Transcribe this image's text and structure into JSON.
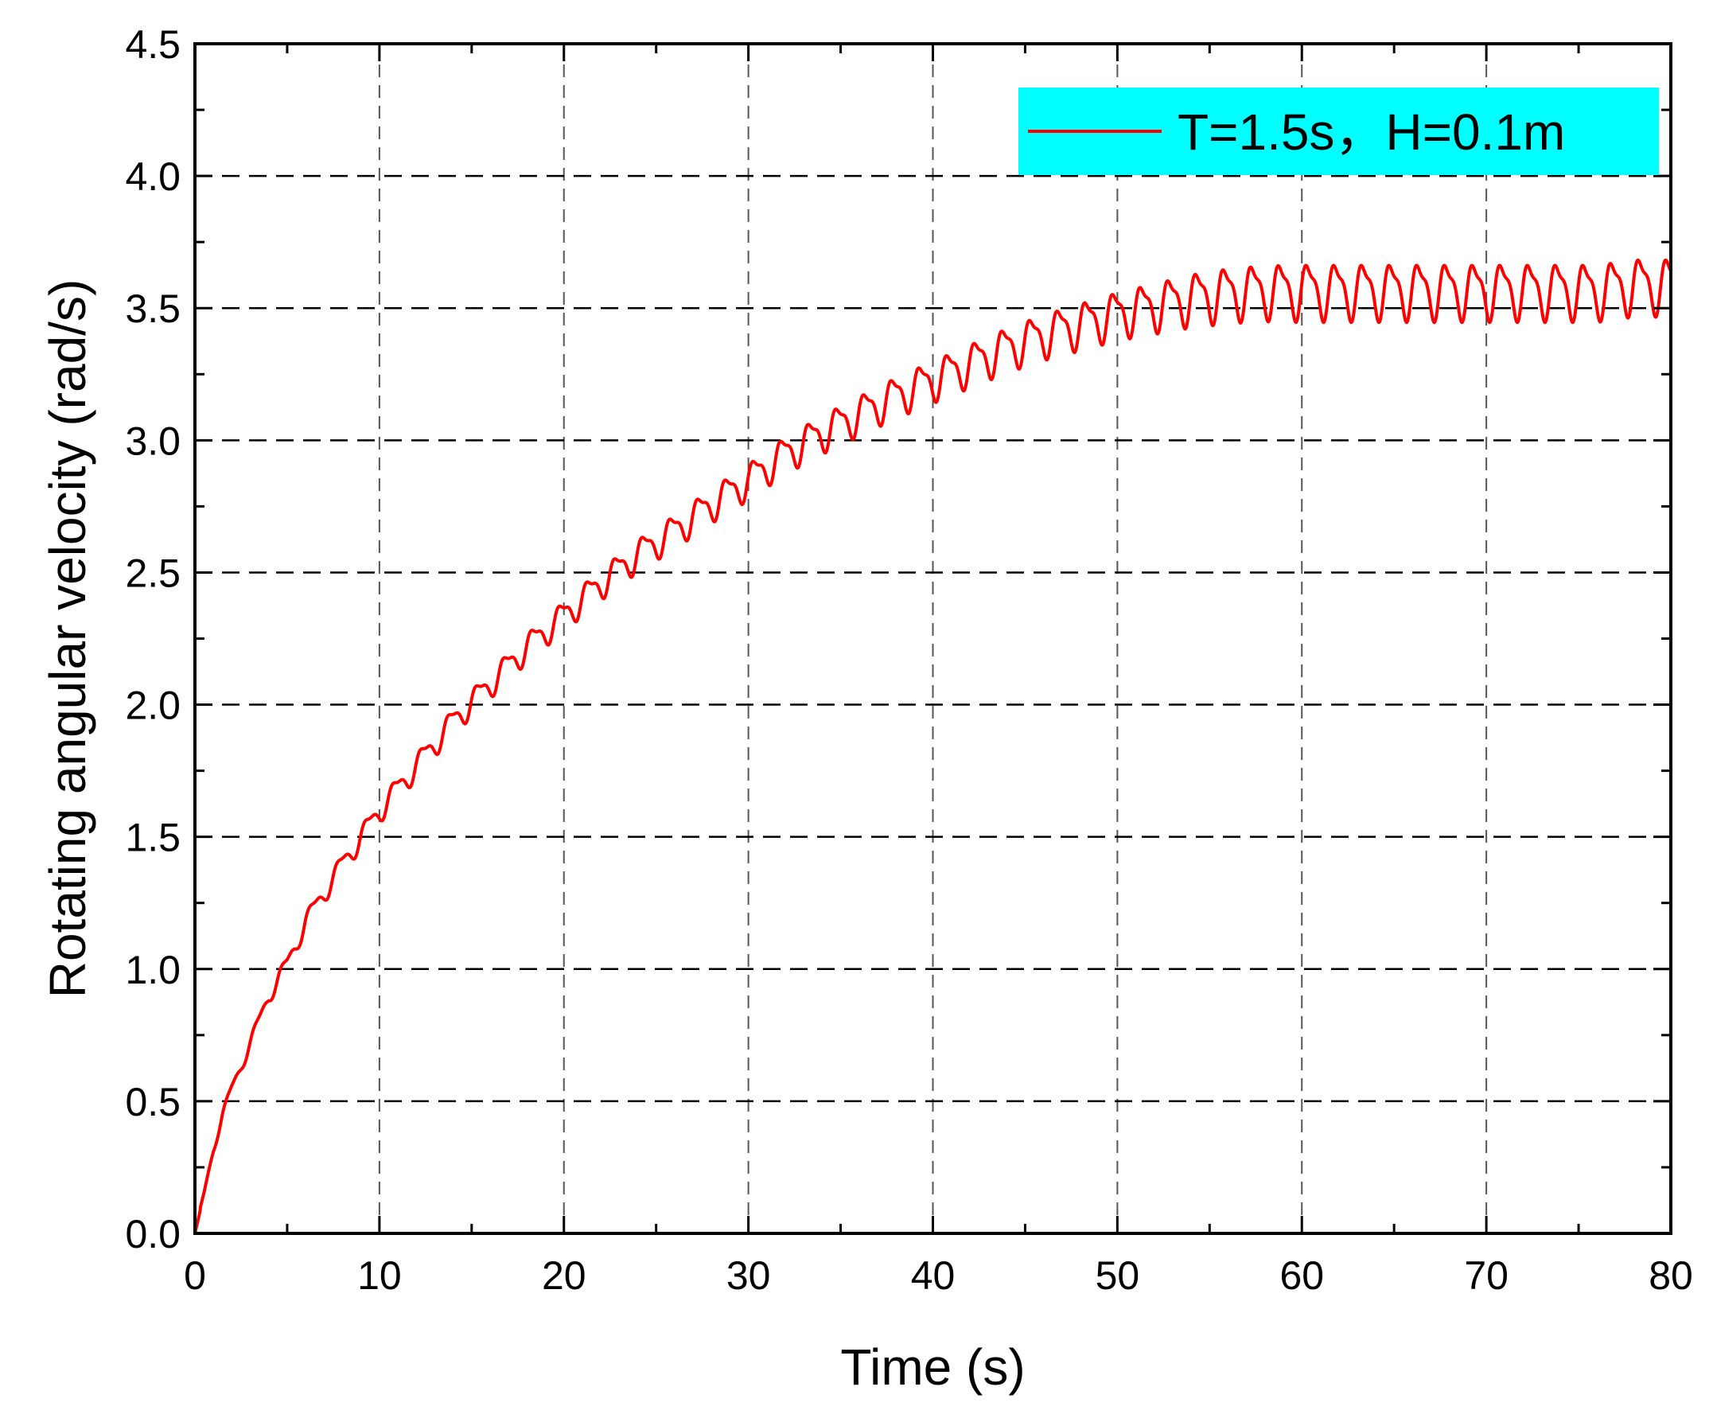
{
  "chart_data": {
    "type": "line",
    "title": "",
    "xlabel": "Time (s)",
    "ylabel": "Rotating angular velocity (rad/s)",
    "xlim": [
      0,
      80
    ],
    "ylim": [
      0,
      4.5
    ],
    "x_ticks": [
      "0",
      "10",
      "20",
      "30",
      "40",
      "50",
      "60",
      "70",
      "80"
    ],
    "y_ticks": [
      "0.0",
      "0.5",
      "1.0",
      "1.5",
      "2.0",
      "2.5",
      "3.0",
      "3.5",
      "4.0",
      "4.5"
    ],
    "grid": true,
    "legend_position": "top-right",
    "legend_background": "#00ffff",
    "series": [
      {
        "name": "T=1.5s，H=0.1m",
        "color": "#ff0000",
        "wave_period": 1.5,
        "trend": {
          "x": [
            0,
            0.5,
            1,
            1.5,
            2,
            3,
            4,
            5,
            6,
            8,
            10,
            12,
            14,
            16,
            18,
            20,
            22,
            24,
            26,
            28,
            30,
            32,
            34,
            36,
            38,
            40,
            42,
            44,
            46,
            48,
            50,
            52,
            54,
            56,
            58,
            60,
            62,
            64,
            66,
            68,
            70,
            72,
            74,
            76,
            78,
            80
          ],
          "y": [
            0.0,
            0.15,
            0.32,
            0.45,
            0.55,
            0.72,
            0.9,
            1.02,
            1.18,
            1.4,
            1.6,
            1.77,
            1.94,
            2.08,
            2.22,
            2.34,
            2.46,
            2.57,
            2.66,
            2.76,
            2.85,
            2.95,
            3.03,
            3.1,
            3.17,
            3.23,
            3.29,
            3.35,
            3.4,
            3.44,
            3.48,
            3.51,
            3.54,
            3.56,
            3.57,
            3.57,
            3.57,
            3.57,
            3.57,
            3.57,
            3.57,
            3.57,
            3.57,
            3.57,
            3.59,
            3.59
          ]
        },
        "oscillation_amplitude": {
          "x": [
            0,
            5,
            10,
            20,
            30,
            40,
            50,
            55,
            60,
            80
          ],
          "y": [
            0.01,
            0.03,
            0.04,
            0.05,
            0.06,
            0.07,
            0.08,
            0.09,
            0.095,
            0.095
          ]
        }
      }
    ]
  }
}
